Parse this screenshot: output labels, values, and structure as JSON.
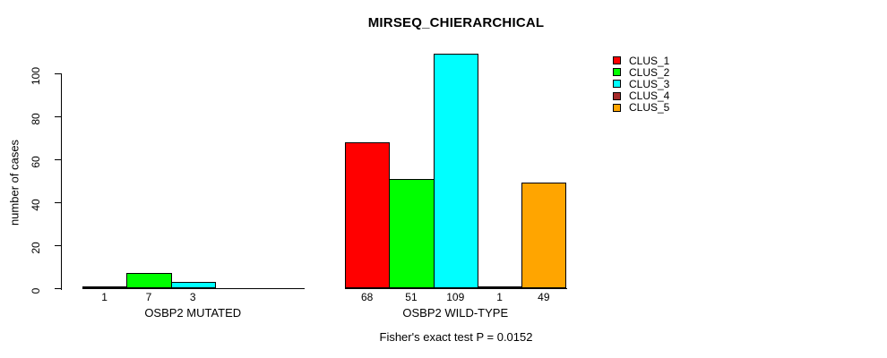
{
  "figure": {
    "title": "MIRSEQ_CHIERARCHICAL",
    "footnote": "Fisher's exact test P = 0.0152"
  },
  "chart_data": {
    "type": "bar",
    "title": "MIRSEQ_CHIERARCHICAL",
    "xlabel": "",
    "ylabel": "number of cases",
    "ylim": [
      0,
      100
    ],
    "yticks": [
      0,
      20,
      40,
      60,
      80,
      100
    ],
    "grid": false,
    "legend_position": "top-right",
    "categories": [
      "CLUS_1",
      "CLUS_2",
      "CLUS_3",
      "CLUS_4",
      "CLUS_5"
    ],
    "series_colors": [
      "#FF0000",
      "#00FF00",
      "#00FFFF",
      "#A52A2A",
      "#FFA500"
    ],
    "groups": [
      {
        "label": "OSBP2 MUTATED",
        "values": [
          1,
          7,
          3,
          0,
          0
        ],
        "bar_labels": [
          "1",
          "7",
          "3",
          "",
          ""
        ]
      },
      {
        "label": "OSBP2 WILD-TYPE",
        "values": [
          68,
          51,
          109,
          1,
          49
        ],
        "bar_labels": [
          "68",
          "51",
          "109",
          "1",
          "49"
        ]
      }
    ],
    "legend": [
      {
        "label": "CLUS_1",
        "color": "#FF0000"
      },
      {
        "label": "CLUS_2",
        "color": "#00FF00"
      },
      {
        "label": "CLUS_3",
        "color": "#00FFFF"
      },
      {
        "label": "CLUS_4",
        "color": "#A52A2A"
      },
      {
        "label": "CLUS_5",
        "color": "#FFA500"
      }
    ],
    "annotation": "Fisher's exact test P = 0.0152"
  }
}
